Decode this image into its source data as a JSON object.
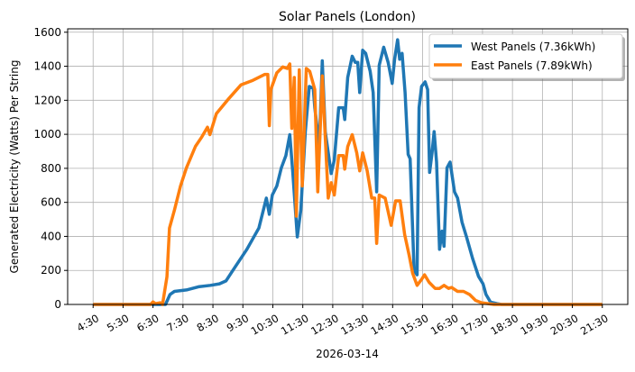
{
  "chart_data": {
    "type": "line",
    "title": "Solar Panels (London)",
    "xlabel": "2026-03-14",
    "ylabel": "Generated Electricity (Watts) Per String",
    "xlim": [
      "03:39",
      "22:21"
    ],
    "ylim": [
      0,
      1620
    ],
    "grid": true,
    "legend_position": "top-right",
    "x_ticks": [
      "4:30",
      "5:30",
      "6:30",
      "7:30",
      "8:30",
      "9:30",
      "10:30",
      "11:30",
      "12:30",
      "13:30",
      "14:30",
      "15:30",
      "16:30",
      "17:30",
      "18:30",
      "19:30",
      "20:30",
      "21:30"
    ],
    "y_ticks": [
      0,
      200,
      400,
      600,
      800,
      1000,
      1200,
      1400,
      1600
    ],
    "series": [
      {
        "name": "West Panels (7.36kWh)",
        "color": "#1f77b4",
        "points": [
          [
            "04:30",
            0
          ],
          [
            "06:55",
            0
          ],
          [
            "07:04",
            59
          ],
          [
            "07:13",
            77
          ],
          [
            "07:37",
            85
          ],
          [
            "08:01",
            104
          ],
          [
            "08:25",
            112
          ],
          [
            "08:43",
            121
          ],
          [
            "08:56",
            138
          ],
          [
            "09:14",
            218
          ],
          [
            "09:38",
            324
          ],
          [
            "10:02",
            449
          ],
          [
            "10:17",
            625
          ],
          [
            "10:23",
            530
          ],
          [
            "10:29",
            643
          ],
          [
            "10:38",
            696
          ],
          [
            "10:47",
            803
          ],
          [
            "10:56",
            874
          ],
          [
            "11:04",
            998
          ],
          [
            "11:10",
            776
          ],
          [
            "11:19",
            397
          ],
          [
            "11:26",
            555
          ],
          [
            "11:35",
            1016
          ],
          [
            "11:43",
            1281
          ],
          [
            "11:51",
            1270
          ],
          [
            "11:54",
            1156
          ],
          [
            "12:03",
            928
          ],
          [
            "12:09",
            1432
          ],
          [
            "12:15",
            1016
          ],
          [
            "12:27",
            769
          ],
          [
            "12:33",
            849
          ],
          [
            "12:42",
            1156
          ],
          [
            "12:51",
            1156
          ],
          [
            "12:54",
            1087
          ],
          [
            "13:00",
            1334
          ],
          [
            "13:09",
            1459
          ],
          [
            "13:15",
            1423
          ],
          [
            "13:20",
            1423
          ],
          [
            "13:24",
            1245
          ],
          [
            "13:30",
            1494
          ],
          [
            "13:36",
            1476
          ],
          [
            "13:45",
            1370
          ],
          [
            "13:51",
            1245
          ],
          [
            "13:58",
            662
          ],
          [
            "14:03",
            1405
          ],
          [
            "14:12",
            1512
          ],
          [
            "14:21",
            1423
          ],
          [
            "14:29",
            1299
          ],
          [
            "14:34",
            1441
          ],
          [
            "14:40",
            1556
          ],
          [
            "14:44",
            1441
          ],
          [
            "14:49",
            1476
          ],
          [
            "14:55",
            1245
          ],
          [
            "15:01",
            882
          ],
          [
            "15:05",
            856
          ],
          [
            "15:13",
            200
          ],
          [
            "15:19",
            174
          ],
          [
            "15:23",
            1156
          ],
          [
            "15:28",
            1281
          ],
          [
            "15:35",
            1308
          ],
          [
            "15:40",
            1263
          ],
          [
            "15:44",
            776
          ],
          [
            "15:49",
            891
          ],
          [
            "15:53",
            1016
          ],
          [
            "15:58",
            837
          ],
          [
            "16:04",
            324
          ],
          [
            "16:09",
            431
          ],
          [
            "16:13",
            342
          ],
          [
            "16:19",
            803
          ],
          [
            "16:25",
            837
          ],
          [
            "16:34",
            662
          ],
          [
            "16:40",
            625
          ],
          [
            "16:49",
            484
          ],
          [
            "16:58",
            397
          ],
          [
            "17:10",
            271
          ],
          [
            "17:22",
            165
          ],
          [
            "17:31",
            121
          ],
          [
            "17:37",
            59
          ],
          [
            "17:46",
            14
          ],
          [
            "17:59",
            5
          ],
          [
            "18:08",
            0
          ],
          [
            "21:30",
            0
          ]
        ]
      },
      {
        "name": "East Panels (7.89kWh)",
        "color": "#ff7f0e",
        "points": [
          [
            "04:30",
            0
          ],
          [
            "06:25",
            0
          ],
          [
            "06:30",
            15
          ],
          [
            "06:35",
            5
          ],
          [
            "06:45",
            10
          ],
          [
            "06:49",
            0
          ],
          [
            "06:58",
            163
          ],
          [
            "07:03",
            449
          ],
          [
            "07:13",
            555
          ],
          [
            "07:25",
            696
          ],
          [
            "07:37",
            803
          ],
          [
            "07:55",
            929
          ],
          [
            "08:07",
            981
          ],
          [
            "08:19",
            1042
          ],
          [
            "08:24",
            998
          ],
          [
            "08:37",
            1122
          ],
          [
            "09:02",
            1211
          ],
          [
            "09:26",
            1290
          ],
          [
            "09:50",
            1317
          ],
          [
            "10:14",
            1352
          ],
          [
            "10:20",
            1352
          ],
          [
            "10:23",
            1051
          ],
          [
            "10:26",
            1263
          ],
          [
            "10:38",
            1361
          ],
          [
            "10:50",
            1396
          ],
          [
            "10:59",
            1387
          ],
          [
            "11:04",
            1414
          ],
          [
            "11:08",
            1035
          ],
          [
            "11:13",
            1334
          ],
          [
            "11:17",
            519
          ],
          [
            "11:23",
            1379
          ],
          [
            "11:29",
            696
          ],
          [
            "11:37",
            1387
          ],
          [
            "11:44",
            1370
          ],
          [
            "11:54",
            1263
          ],
          [
            "12:00",
            662
          ],
          [
            "12:09",
            1343
          ],
          [
            "12:15",
            981
          ],
          [
            "12:21",
            625
          ],
          [
            "12:27",
            715
          ],
          [
            "12:33",
            643
          ],
          [
            "12:42",
            875
          ],
          [
            "12:51",
            875
          ],
          [
            "12:54",
            795
          ],
          [
            "13:00",
            928
          ],
          [
            "13:09",
            998
          ],
          [
            "13:18",
            891
          ],
          [
            "13:24",
            785
          ],
          [
            "13:30",
            891
          ],
          [
            "13:39",
            785
          ],
          [
            "13:48",
            625
          ],
          [
            "13:54",
            625
          ],
          [
            "13:58",
            359
          ],
          [
            "14:03",
            643
          ],
          [
            "14:15",
            625
          ],
          [
            "14:27",
            465
          ],
          [
            "14:36",
            609
          ],
          [
            "14:45",
            609
          ],
          [
            "14:54",
            412
          ],
          [
            "15:03",
            289
          ],
          [
            "15:10",
            183
          ],
          [
            "15:19",
            112
          ],
          [
            "15:28",
            147
          ],
          [
            "15:34",
            174
          ],
          [
            "15:43",
            130
          ],
          [
            "15:55",
            94
          ],
          [
            "16:04",
            94
          ],
          [
            "16:13",
            112
          ],
          [
            "16:22",
            94
          ],
          [
            "16:28",
            100
          ],
          [
            "16:40",
            77
          ],
          [
            "16:52",
            77
          ],
          [
            "17:04",
            59
          ],
          [
            "17:16",
            24
          ],
          [
            "17:28",
            10
          ],
          [
            "17:53",
            0
          ],
          [
            "21:30",
            0
          ]
        ]
      }
    ]
  }
}
